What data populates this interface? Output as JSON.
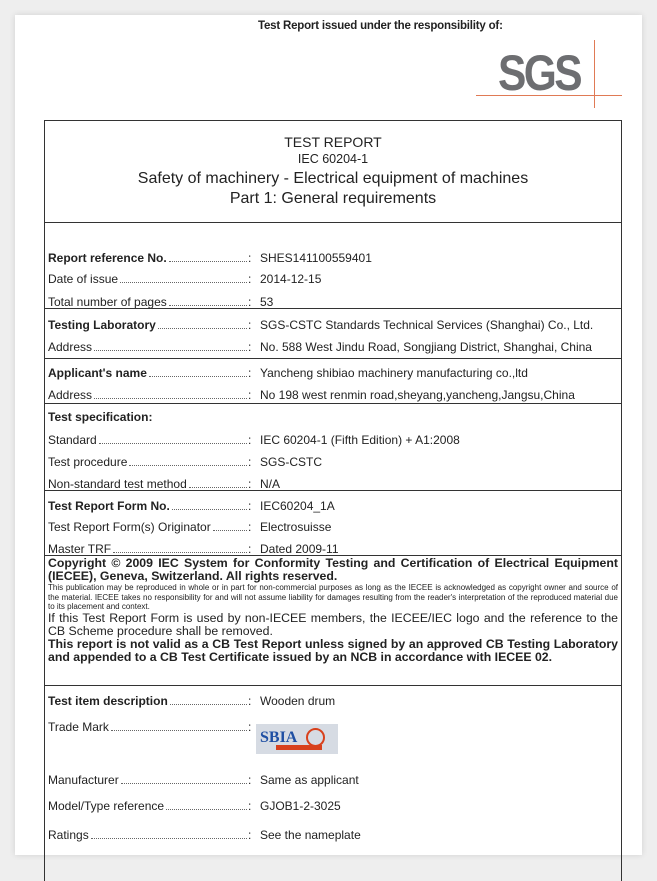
{
  "header": {
    "issued_by": "Test Report issued under the responsibility of:",
    "logo_text": "SGS",
    "logo_color": "#6d6e71",
    "accent": "#e07a55"
  },
  "title": {
    "line1": "TEST REPORT",
    "line2": "IEC 60204-1",
    "line3": "Safety of machinery - Electrical equipment of machines",
    "line4": "Part 1: General requirements"
  },
  "fields": [
    {
      "label": "Report reference No.",
      "value": "SHES141100559401",
      "bold": true
    },
    {
      "label": "Date of issue",
      "value": "2014-12-15"
    },
    {
      "label": "Total number of pages",
      "value": "53"
    },
    {
      "label": "Testing Laboratory",
      "value": "SGS-CSTC Standards Technical Services (Shanghai) Co., Ltd.",
      "bold": true
    },
    {
      "label": "Address",
      "value": "No. 588 West Jindu Road, Songjiang District, Shanghai, China"
    },
    {
      "label": "Applicant's name",
      "value": "Yancheng shibiao machinery manufacturing co.,ltd",
      "bold": true
    },
    {
      "label": "Address",
      "value": "No 198 west renmin road,sheyang,yancheng,Jangsu,China"
    },
    {
      "label": "Test specification:",
      "value": "",
      "bold": true
    },
    {
      "label": "Standard",
      "value": "IEC 60204-1 (Fifth Edition) + A1:2008"
    },
    {
      "label": "Test procedure",
      "value": "SGS-CSTC"
    },
    {
      "label": "Non-standard test method",
      "value": "N/A"
    },
    {
      "label": "Test Report Form No.",
      "value": "IEC60204_1A",
      "bold": true
    },
    {
      "label": "Test Report Form(s) Originator",
      "value": "Electrosuisse"
    },
    {
      "label": "Master TRF",
      "value": "Dated 2009-11"
    },
    {
      "label": "Test item description",
      "value": "Wooden drum",
      "bold": true
    },
    {
      "label": "Trade Mark",
      "value": ""
    },
    {
      "label": "Manufacturer",
      "value": "Same as applicant"
    },
    {
      "label": "Model/Type reference",
      "value": "GJOB1-2-3025"
    },
    {
      "label": "Ratings",
      "value": "See the nameplate"
    }
  ],
  "copyright": {
    "heading": "Copyright © 2009 IEC System for Conformity Testing and Certification of Electrical Equipment (IECEE), Geneva, Switzerland. All rights reserved.",
    "body": "This publication may be reproduced in whole or in part for non-commercial purposes as long as the IECEE is acknowledged as copyright owner and source of the material. IECEE takes no responsibility for and will not assume liability for damages resulting from the reader's interpretation of the reproduced material due to its placement and context.",
    "notice": "If this Test Report Form is used by non-IECEE members, the IECEE/IEC logo and the reference to the CB Scheme procedure shall be removed.",
    "validity": "This report is not valid as a CB Test Report unless signed by an approved CB Testing Laboratory and appended to a CB Test Certificate issued by an NCB in accordance with IECEE 02."
  },
  "trademark": {
    "logo_text": "SBIA",
    "colors": [
      "#1f4fa3",
      "#d8411c"
    ]
  }
}
